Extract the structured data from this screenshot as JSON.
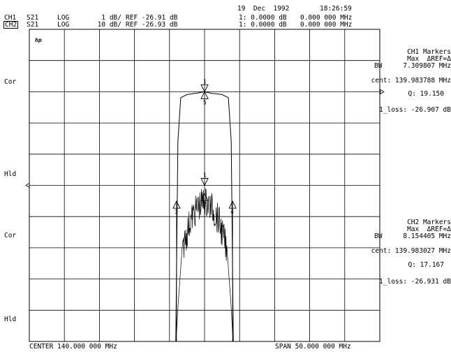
{
  "header": {
    "date": "19  Dec  1992",
    "time": "18:26:59",
    "ch1": {
      "label": "CH1",
      "param": "S21",
      "format": "LOG",
      "scale": "1 dB/",
      "ref": "REF -26.91 dB",
      "marker": "1: 0.0000 dB",
      "freq": "0.000 000 MHz"
    },
    "ch2": {
      "label": "CH2",
      "param": "S21",
      "format": "LOG",
      "scale": "10 dB/",
      "ref": "REF -26.93 dB",
      "marker": "1: 0.0000 dB",
      "freq": "0.000 000 MHz"
    }
  },
  "side_labels": {
    "cor_top": "Cor",
    "hld_top": "Hld",
    "cor_bottom": "Cor",
    "hld_bottom": "Hld"
  },
  "ch1_markers": {
    "title": "CH1 Markers",
    "line1": "Max  ΔREF=Δ",
    "bw_label": "BW",
    "bw": "7.309807 MHz",
    "cent": "cent: 139.983788 MHz",
    "q": "Q: 19.150",
    "loss": "1_loss: -26.907 dB"
  },
  "ch2_markers": {
    "title": "CH2 Markers",
    "line1": "Max  ΔREF=Δ",
    "bw_label": "BW",
    "bw": "8.154405 MHz",
    "cent": "cent: 139.983027 MHz",
    "q": "Q: 17.167",
    "loss": "1_loss: -26.931 dB"
  },
  "footer": {
    "center": "CENTER 140.000 000 MHz",
    "span": "SPAN 50.000 000 MHz"
  },
  "logo": "hp",
  "marker_labels": {
    "m1": "1",
    "m2": "2",
    "m3": "3",
    "m4": "4",
    "m5": "5"
  },
  "chart_data": {
    "type": "line",
    "title": "",
    "xlabel": "",
    "ylabel": "",
    "xlim": [
      115,
      165
    ],
    "x_unit": "MHz",
    "grid": true,
    "divisions": {
      "x": 10,
      "y": 10
    },
    "series": [
      {
        "name": "CH1",
        "scale_db_per_div": 1,
        "ref_db": -26.91,
        "points": [
          [
            115,
            -37.9
          ],
          [
            120,
            -37.9
          ],
          [
            135.9,
            -37.9
          ],
          [
            136.2,
            -28.5
          ],
          [
            136.6,
            -27.1
          ],
          [
            137.5,
            -27.0
          ],
          [
            139,
            -26.95
          ],
          [
            140,
            -26.91
          ],
          [
            141,
            -26.96
          ],
          [
            142.5,
            -27.0
          ],
          [
            143.4,
            -27.1
          ],
          [
            143.8,
            -28.5
          ],
          [
            144.1,
            -37.9
          ],
          [
            165,
            -37.9
          ]
        ]
      },
      {
        "name": "CH2",
        "scale_db_per_div": 10,
        "ref_db": -26.93,
        "points": [
          [
            115,
            -108
          ],
          [
            125,
            -108
          ],
          [
            135.2,
            -108
          ],
          [
            136.2,
            -66
          ],
          [
            137,
            -41
          ],
          [
            138,
            -33
          ],
          [
            139,
            -29
          ],
          [
            140,
            -26.93
          ],
          [
            141,
            -29
          ],
          [
            142,
            -33
          ],
          [
            143,
            -41
          ],
          [
            143.8,
            -66
          ],
          [
            144.8,
            -108
          ],
          [
            155,
            -108
          ],
          [
            165,
            -108
          ]
        ],
        "noise_floor_db": [
          -110,
          -94
        ]
      }
    ],
    "markers": [
      {
        "trace": "CH1",
        "id": "1",
        "x": 140.0,
        "db": -26.91
      },
      {
        "trace": "CH1",
        "id": "5",
        "x": 140.0,
        "db": -26.91
      },
      {
        "trace": "CH2",
        "id": "1",
        "x": 140.0,
        "db": -26.93
      },
      {
        "trace": "CH2",
        "id": "2",
        "x": 140.0,
        "db": -29.5
      },
      {
        "trace": "CH2",
        "id": "3",
        "x": 136.0,
        "db": -32.0
      },
      {
        "trace": "CH2",
        "id": "4",
        "x": 144.0,
        "db": -32.0
      }
    ]
  }
}
